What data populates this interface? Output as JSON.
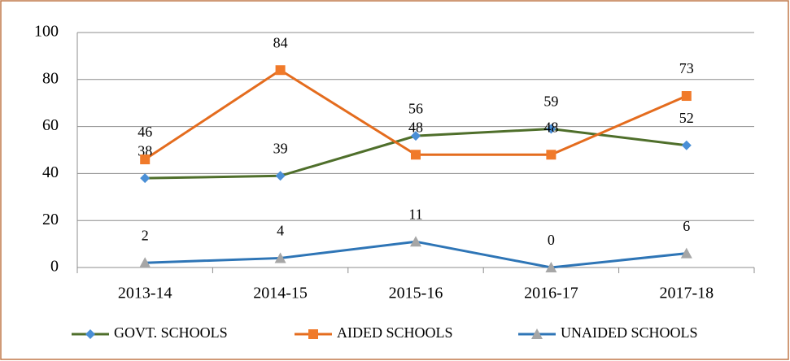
{
  "chart_data": {
    "type": "line",
    "categories": [
      "2013-14",
      "2014-15",
      "2015-16",
      "2016-17",
      "2017-18"
    ],
    "series": [
      {
        "name": "GOVT. SCHOOLS",
        "color": "#4f6f2b",
        "marker": "diamond",
        "marker_color": "#4a8fd6",
        "values": [
          38,
          39,
          56,
          59,
          52
        ]
      },
      {
        "name": "AIDED SCHOOLS",
        "color": "#e46c1e",
        "marker": "square",
        "marker_color": "#f07a2a",
        "values": [
          46,
          84,
          48,
          48,
          73
        ]
      },
      {
        "name": "UNAIDED SCHOOLS",
        "color": "#2e75b6",
        "marker": "triangle",
        "marker_color": "#a6a6a6",
        "values": [
          2,
          4,
          11,
          0,
          6
        ]
      }
    ],
    "ylim": [
      0,
      100
    ],
    "yticks": [
      0,
      20,
      40,
      60,
      80,
      100
    ],
    "grid": true,
    "legend": "bottom",
    "data_labels": true
  }
}
